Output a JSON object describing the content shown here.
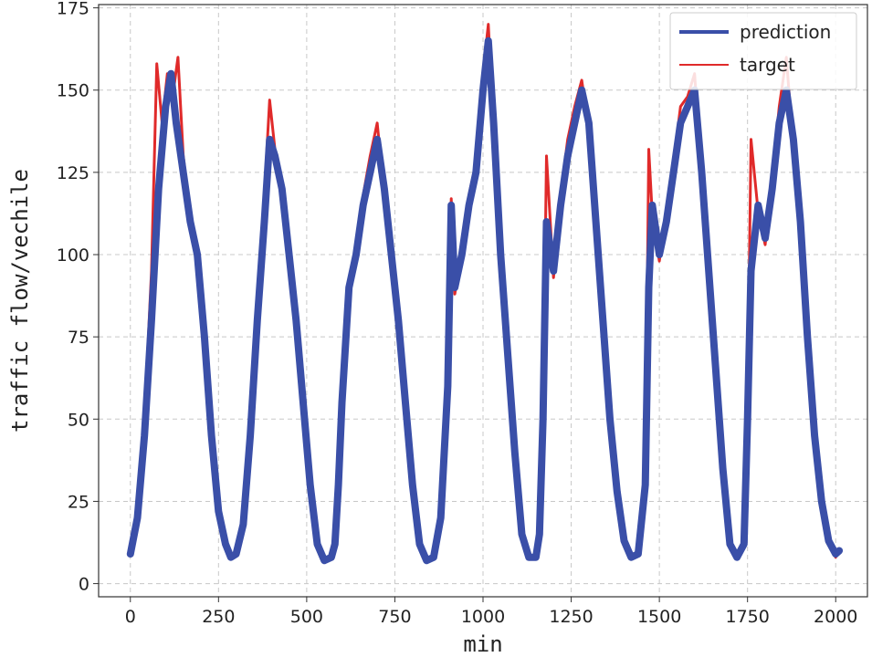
{
  "chart_data": {
    "type": "line",
    "xlabel": "min",
    "ylabel": "traffic flow/vechile",
    "xlim": [
      -90,
      2090
    ],
    "ylim": [
      -4,
      176
    ],
    "x_ticks": [
      0,
      250,
      500,
      750,
      1000,
      1250,
      1500,
      1750,
      2000
    ],
    "y_ticks": [
      0,
      25,
      50,
      75,
      100,
      125,
      150,
      175
    ],
    "grid": true,
    "legend_position": "top-right",
    "series": [
      {
        "name": "prediction",
        "color": "#3a4fa8",
        "points": [
          [
            0,
            9
          ],
          [
            20,
            20
          ],
          [
            40,
            45
          ],
          [
            60,
            80
          ],
          [
            80,
            120
          ],
          [
            100,
            145
          ],
          [
            115,
            155
          ],
          [
            130,
            140
          ],
          [
            150,
            125
          ],
          [
            170,
            110
          ],
          [
            190,
            100
          ],
          [
            210,
            75
          ],
          [
            230,
            45
          ],
          [
            250,
            22
          ],
          [
            270,
            12
          ],
          [
            285,
            8
          ],
          [
            300,
            9
          ],
          [
            320,
            18
          ],
          [
            340,
            45
          ],
          [
            360,
            80
          ],
          [
            380,
            110
          ],
          [
            395,
            135
          ],
          [
            410,
            130
          ],
          [
            430,
            120
          ],
          [
            450,
            100
          ],
          [
            470,
            80
          ],
          [
            490,
            55
          ],
          [
            510,
            30
          ],
          [
            530,
            12
          ],
          [
            550,
            7
          ],
          [
            570,
            8
          ],
          [
            580,
            12
          ],
          [
            590,
            30
          ],
          [
            600,
            55
          ],
          [
            620,
            90
          ],
          [
            640,
            100
          ],
          [
            660,
            115
          ],
          [
            680,
            125
          ],
          [
            700,
            135
          ],
          [
            720,
            120
          ],
          [
            740,
            100
          ],
          [
            760,
            80
          ],
          [
            780,
            55
          ],
          [
            800,
            30
          ],
          [
            820,
            12
          ],
          [
            840,
            7
          ],
          [
            860,
            8
          ],
          [
            880,
            20
          ],
          [
            900,
            60
          ],
          [
            910,
            115
          ],
          [
            920,
            90
          ],
          [
            940,
            100
          ],
          [
            960,
            115
          ],
          [
            980,
            125
          ],
          [
            1000,
            150
          ],
          [
            1015,
            165
          ],
          [
            1030,
            140
          ],
          [
            1050,
            100
          ],
          [
            1070,
            70
          ],
          [
            1090,
            40
          ],
          [
            1110,
            15
          ],
          [
            1130,
            8
          ],
          [
            1150,
            8
          ],
          [
            1160,
            15
          ],
          [
            1170,
            50
          ],
          [
            1180,
            110
          ],
          [
            1200,
            95
          ],
          [
            1220,
            115
          ],
          [
            1240,
            130
          ],
          [
            1260,
            140
          ],
          [
            1280,
            150
          ],
          [
            1300,
            140
          ],
          [
            1320,
            110
          ],
          [
            1340,
            80
          ],
          [
            1360,
            50
          ],
          [
            1380,
            28
          ],
          [
            1400,
            13
          ],
          [
            1420,
            8
          ],
          [
            1440,
            9
          ],
          [
            1460,
            30
          ],
          [
            1470,
            90
          ],
          [
            1480,
            115
          ],
          [
            1500,
            100
          ],
          [
            1520,
            110
          ],
          [
            1540,
            125
          ],
          [
            1560,
            140
          ],
          [
            1580,
            145
          ],
          [
            1600,
            150
          ],
          [
            1620,
            125
          ],
          [
            1640,
            95
          ],
          [
            1660,
            65
          ],
          [
            1680,
            35
          ],
          [
            1700,
            12
          ],
          [
            1720,
            8
          ],
          [
            1740,
            12
          ],
          [
            1750,
            50
          ],
          [
            1760,
            95
          ],
          [
            1780,
            115
          ],
          [
            1800,
            105
          ],
          [
            1820,
            120
          ],
          [
            1840,
            140
          ],
          [
            1860,
            150
          ],
          [
            1880,
            135
          ],
          [
            1900,
            110
          ],
          [
            1920,
            75
          ],
          [
            1940,
            45
          ],
          [
            1960,
            25
          ],
          [
            1980,
            13
          ],
          [
            2000,
            9
          ],
          [
            2010,
            10
          ]
        ]
      },
      {
        "name": "target",
        "color": "#e02a2a",
        "points": [
          [
            0,
            9
          ],
          [
            20,
            22
          ],
          [
            40,
            50
          ],
          [
            60,
            95
          ],
          [
            75,
            158
          ],
          [
            90,
            140
          ],
          [
            105,
            155
          ],
          [
            120,
            148
          ],
          [
            135,
            160
          ],
          [
            150,
            130
          ],
          [
            170,
            112
          ],
          [
            190,
            98
          ],
          [
            210,
            73
          ],
          [
            230,
            44
          ],
          [
            250,
            21
          ],
          [
            270,
            11
          ],
          [
            285,
            8
          ],
          [
            300,
            9
          ],
          [
            320,
            19
          ],
          [
            340,
            47
          ],
          [
            360,
            84
          ],
          [
            380,
            118
          ],
          [
            395,
            147
          ],
          [
            410,
            132
          ],
          [
            430,
            118
          ],
          [
            450,
            98
          ],
          [
            470,
            78
          ],
          [
            490,
            53
          ],
          [
            510,
            29
          ],
          [
            530,
            12
          ],
          [
            550,
            7
          ],
          [
            570,
            8
          ],
          [
            580,
            12
          ],
          [
            590,
            31
          ],
          [
            600,
            58
          ],
          [
            620,
            92
          ],
          [
            640,
            102
          ],
          [
            660,
            118
          ],
          [
            680,
            130
          ],
          [
            700,
            140
          ],
          [
            720,
            118
          ],
          [
            740,
            98
          ],
          [
            760,
            78
          ],
          [
            780,
            53
          ],
          [
            800,
            29
          ],
          [
            820,
            12
          ],
          [
            840,
            7
          ],
          [
            860,
            8
          ],
          [
            880,
            21
          ],
          [
            900,
            62
          ],
          [
            910,
            117
          ],
          [
            920,
            88
          ],
          [
            940,
            102
          ],
          [
            960,
            118
          ],
          [
            980,
            128
          ],
          [
            1000,
            155
          ],
          [
            1015,
            170
          ],
          [
            1030,
            138
          ],
          [
            1050,
            98
          ],
          [
            1070,
            68
          ],
          [
            1090,
            38
          ],
          [
            1110,
            14
          ],
          [
            1130,
            8
          ],
          [
            1150,
            8
          ],
          [
            1160,
            16
          ],
          [
            1170,
            52
          ],
          [
            1180,
            130
          ],
          [
            1200,
            93
          ],
          [
            1220,
            118
          ],
          [
            1240,
            135
          ],
          [
            1260,
            145
          ],
          [
            1280,
            153
          ],
          [
            1300,
            138
          ],
          [
            1320,
            108
          ],
          [
            1340,
            78
          ],
          [
            1360,
            48
          ],
          [
            1380,
            27
          ],
          [
            1400,
            12
          ],
          [
            1420,
            8
          ],
          [
            1440,
            9
          ],
          [
            1460,
            33
          ],
          [
            1470,
            132
          ],
          [
            1480,
            112
          ],
          [
            1500,
            98
          ],
          [
            1520,
            113
          ],
          [
            1540,
            128
          ],
          [
            1560,
            145
          ],
          [
            1580,
            148
          ],
          [
            1600,
            155
          ],
          [
            1620,
            123
          ],
          [
            1640,
            93
          ],
          [
            1660,
            63
          ],
          [
            1680,
            34
          ],
          [
            1700,
            11
          ],
          [
            1720,
            8
          ],
          [
            1740,
            12
          ],
          [
            1750,
            55
          ],
          [
            1760,
            135
          ],
          [
            1780,
            113
          ],
          [
            1800,
            103
          ],
          [
            1820,
            123
          ],
          [
            1840,
            145
          ],
          [
            1860,
            160
          ],
          [
            1880,
            132
          ],
          [
            1900,
            108
          ],
          [
            1920,
            73
          ],
          [
            1940,
            43
          ],
          [
            1960,
            24
          ],
          [
            1980,
            12
          ],
          [
            2000,
            8
          ],
          [
            2010,
            10
          ]
        ]
      }
    ]
  }
}
